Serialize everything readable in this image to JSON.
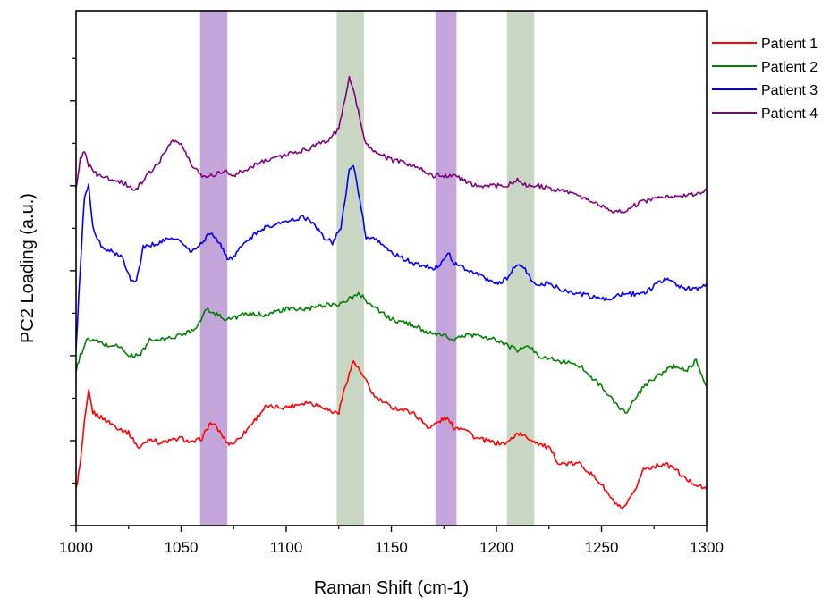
{
  "chart_data": {
    "type": "line",
    "xlabel": "Raman Shift (cm-1)",
    "ylabel": "PC2 Loading (a.u.)",
    "xlim": [
      1000,
      1300
    ],
    "ylim": [
      0,
      100
    ],
    "x_ticks": [
      1000,
      1050,
      1100,
      1150,
      1200,
      1250,
      1300
    ],
    "y_tick_labels_shown": false,
    "y_major_ticks": [
      0,
      16.5,
      33,
      49.5,
      66,
      82.5
    ],
    "legend_position": "top-right",
    "highlight_bands": [
      {
        "from": 1059,
        "to": 1072,
        "color": "#c3a5d9"
      },
      {
        "from": 1124,
        "to": 1137,
        "color": "#c9d6c3"
      },
      {
        "from": 1171,
        "to": 1181,
        "color": "#c3a5d9"
      },
      {
        "from": 1205,
        "to": 1218,
        "color": "#c9d6c3"
      }
    ],
    "series": [
      {
        "name": "Patient 1",
        "color": "#ff0000",
        "points": [
          [
            1000,
            7
          ],
          [
            1002,
            12
          ],
          [
            1004,
            20
          ],
          [
            1006,
            26
          ],
          [
            1008,
            22
          ],
          [
            1012,
            21
          ],
          [
            1020,
            19
          ],
          [
            1025,
            18
          ],
          [
            1030,
            15
          ],
          [
            1035,
            17
          ],
          [
            1040,
            16
          ],
          [
            1050,
            17
          ],
          [
            1055,
            16
          ],
          [
            1060,
            17
          ],
          [
            1064,
            20
          ],
          [
            1067,
            19
          ],
          [
            1072,
            16
          ],
          [
            1075,
            16
          ],
          [
            1080,
            18
          ],
          [
            1090,
            23
          ],
          [
            1100,
            23
          ],
          [
            1110,
            24
          ],
          [
            1118,
            23
          ],
          [
            1122,
            22
          ],
          [
            1125,
            22
          ],
          [
            1128,
            27
          ],
          [
            1132,
            32
          ],
          [
            1135,
            30
          ],
          [
            1138,
            28
          ],
          [
            1142,
            25
          ],
          [
            1150,
            23
          ],
          [
            1160,
            22
          ],
          [
            1168,
            19
          ],
          [
            1172,
            20
          ],
          [
            1176,
            21
          ],
          [
            1180,
            19
          ],
          [
            1185,
            19
          ],
          [
            1190,
            17
          ],
          [
            1200,
            16
          ],
          [
            1205,
            16
          ],
          [
            1210,
            18
          ],
          [
            1215,
            17
          ],
          [
            1220,
            16
          ],
          [
            1225,
            15
          ],
          [
            1230,
            12
          ],
          [
            1240,
            12
          ],
          [
            1250,
            8
          ],
          [
            1255,
            5
          ],
          [
            1260,
            3
          ],
          [
            1265,
            6
          ],
          [
            1270,
            11
          ],
          [
            1280,
            12
          ],
          [
            1285,
            11
          ],
          [
            1290,
            9
          ],
          [
            1300,
            7
          ]
        ]
      },
      {
        "name": "Patient 2",
        "color": "#008000",
        "points": [
          [
            1000,
            30
          ],
          [
            1002,
            33
          ],
          [
            1005,
            36
          ],
          [
            1008,
            36
          ],
          [
            1015,
            35
          ],
          [
            1020,
            35
          ],
          [
            1025,
            33
          ],
          [
            1030,
            33
          ],
          [
            1035,
            36
          ],
          [
            1040,
            36
          ],
          [
            1050,
            37
          ],
          [
            1055,
            38
          ],
          [
            1058,
            39
          ],
          [
            1062,
            42
          ],
          [
            1067,
            41
          ],
          [
            1072,
            40
          ],
          [
            1080,
            41
          ],
          [
            1090,
            41
          ],
          [
            1100,
            42
          ],
          [
            1110,
            42
          ],
          [
            1120,
            43
          ],
          [
            1125,
            43
          ],
          [
            1130,
            44
          ],
          [
            1135,
            45
          ],
          [
            1140,
            43
          ],
          [
            1150,
            40
          ],
          [
            1160,
            39
          ],
          [
            1170,
            37
          ],
          [
            1175,
            37
          ],
          [
            1180,
            36
          ],
          [
            1185,
            37
          ],
          [
            1190,
            37
          ],
          [
            1200,
            36
          ],
          [
            1205,
            35
          ],
          [
            1210,
            34
          ],
          [
            1215,
            35
          ],
          [
            1220,
            33
          ],
          [
            1230,
            32
          ],
          [
            1240,
            31
          ],
          [
            1250,
            27
          ],
          [
            1258,
            23
          ],
          [
            1262,
            22
          ],
          [
            1270,
            27
          ],
          [
            1280,
            30
          ],
          [
            1285,
            31
          ],
          [
            1290,
            30
          ],
          [
            1295,
            32
          ],
          [
            1300,
            27
          ]
        ]
      },
      {
        "name": "Patient 3",
        "color": "#0000ff",
        "points": [
          [
            1000,
            34
          ],
          [
            1002,
            50
          ],
          [
            1004,
            64
          ],
          [
            1006,
            66
          ],
          [
            1008,
            58
          ],
          [
            1012,
            54
          ],
          [
            1018,
            53
          ],
          [
            1022,
            52
          ],
          [
            1026,
            48
          ],
          [
            1028,
            47
          ],
          [
            1030,
            50
          ],
          [
            1032,
            54
          ],
          [
            1040,
            55
          ],
          [
            1046,
            56
          ],
          [
            1050,
            55
          ],
          [
            1055,
            53
          ],
          [
            1060,
            55
          ],
          [
            1064,
            57
          ],
          [
            1068,
            55
          ],
          [
            1072,
            52
          ],
          [
            1075,
            52
          ],
          [
            1080,
            55
          ],
          [
            1090,
            58
          ],
          [
            1100,
            59
          ],
          [
            1108,
            60
          ],
          [
            1112,
            59
          ],
          [
            1118,
            56
          ],
          [
            1122,
            55
          ],
          [
            1126,
            58
          ],
          [
            1130,
            69
          ],
          [
            1132,
            70
          ],
          [
            1135,
            63
          ],
          [
            1138,
            56
          ],
          [
            1145,
            55
          ],
          [
            1150,
            53
          ],
          [
            1160,
            51
          ],
          [
            1170,
            50
          ],
          [
            1174,
            51
          ],
          [
            1177,
            53
          ],
          [
            1180,
            51
          ],
          [
            1185,
            50
          ],
          [
            1190,
            49
          ],
          [
            1195,
            48
          ],
          [
            1200,
            47
          ],
          [
            1205,
            48
          ],
          [
            1210,
            51
          ],
          [
            1213,
            50
          ],
          [
            1218,
            47
          ],
          [
            1225,
            47
          ],
          [
            1230,
            46
          ],
          [
            1240,
            45
          ],
          [
            1250,
            44
          ],
          [
            1255,
            44
          ],
          [
            1260,
            45
          ],
          [
            1270,
            45
          ],
          [
            1280,
            48
          ],
          [
            1290,
            46
          ],
          [
            1295,
            46
          ],
          [
            1300,
            47
          ]
        ]
      },
      {
        "name": "Patient 4",
        "color": "#800080",
        "points": [
          [
            1000,
            65
          ],
          [
            1002,
            71
          ],
          [
            1004,
            73
          ],
          [
            1006,
            70
          ],
          [
            1010,
            68
          ],
          [
            1020,
            67
          ],
          [
            1025,
            66
          ],
          [
            1028,
            65
          ],
          [
            1032,
            67
          ],
          [
            1040,
            71
          ],
          [
            1046,
            75
          ],
          [
            1050,
            74
          ],
          [
            1055,
            70
          ],
          [
            1060,
            68
          ],
          [
            1065,
            68
          ],
          [
            1070,
            69
          ],
          [
            1075,
            68
          ],
          [
            1080,
            69
          ],
          [
            1090,
            71
          ],
          [
            1100,
            72
          ],
          [
            1110,
            73
          ],
          [
            1120,
            75
          ],
          [
            1125,
            77
          ],
          [
            1130,
            87
          ],
          [
            1132,
            85
          ],
          [
            1135,
            79
          ],
          [
            1138,
            74
          ],
          [
            1145,
            72
          ],
          [
            1150,
            71
          ],
          [
            1160,
            70
          ],
          [
            1170,
            68
          ],
          [
            1175,
            68
          ],
          [
            1180,
            68
          ],
          [
            1185,
            67
          ],
          [
            1190,
            66
          ],
          [
            1200,
            66
          ],
          [
            1205,
            66
          ],
          [
            1210,
            67
          ],
          [
            1215,
            66
          ],
          [
            1220,
            66
          ],
          [
            1230,
            65
          ],
          [
            1240,
            64
          ],
          [
            1250,
            62
          ],
          [
            1255,
            61
          ],
          [
            1260,
            61
          ],
          [
            1265,
            62
          ],
          [
            1270,
            63
          ],
          [
            1280,
            64
          ],
          [
            1290,
            64
          ],
          [
            1300,
            65
          ]
        ]
      }
    ]
  }
}
